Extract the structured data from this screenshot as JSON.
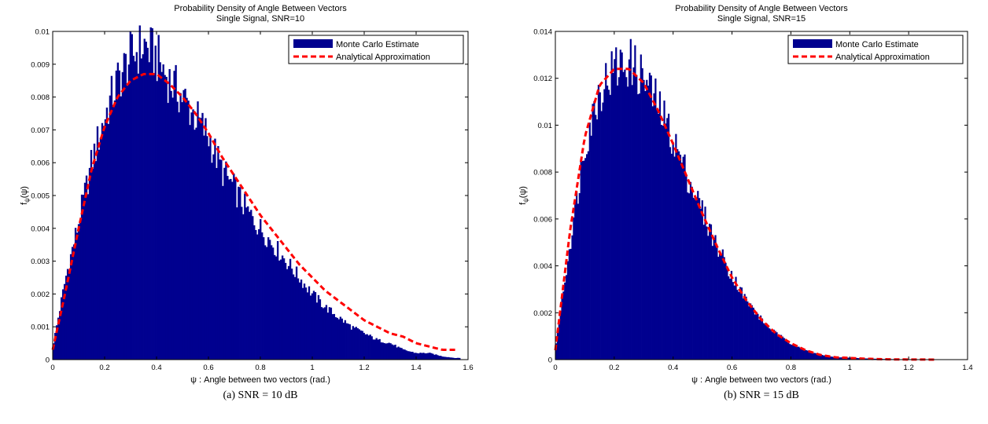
{
  "charts": [
    {
      "title_line1": "Probability Density of Angle Between Vectors",
      "title_line2": "Single Signal, SNR=10",
      "caption": "(a)  SNR = 10 dB",
      "legend": {
        "histogram": "Monte Carlo Estimate",
        "curve": "Analytical Approximation",
        "placement": "top-right"
      }
    },
    {
      "title_line1": "Probability Density of Angle Between Vectors",
      "title_line2": "Single Signal, SNR=15",
      "caption": "(b)  SNR = 15 dB",
      "legend": {
        "histogram": "Monte Carlo Estimate",
        "curve": "Analytical Approximation",
        "placement": "top-right"
      }
    }
  ],
  "colors": {
    "histogram": "#00008f",
    "curve": "#ff0000"
  },
  "chart_data": [
    {
      "type": "bar",
      "title": "Probability Density of Angle Between Vectors\nSingle Signal, SNR=10",
      "xlabel": "ψ : Angle between two vectors (rad.)",
      "ylabel": "f_ψ(ψ)",
      "xlim": [
        0,
        1.6
      ],
      "ylim": [
        0,
        0.01
      ],
      "xticks": [
        0,
        0.2,
        0.4,
        0.6,
        0.8,
        1,
        1.2,
        1.4,
        1.6
      ],
      "xtick_labels": [
        "0",
        "0.2",
        "0.4",
        "0.6",
        "0.8",
        "1",
        "1.2",
        "1.4",
        "1.6"
      ],
      "yticks": [
        0,
        0.001,
        0.002,
        0.003,
        0.004,
        0.005,
        0.006,
        0.007,
        0.008,
        0.009,
        0.01
      ],
      "ytick_labels": [
        "0",
        "0.001",
        "0.002",
        "0.003",
        "0.004",
        "0.005",
        "0.006",
        "0.007",
        "0.008",
        "0.009",
        "0.01"
      ],
      "grid": false,
      "series": [
        {
          "name": "Monte Carlo Estimate",
          "kind": "histogram",
          "x": [
            0.0,
            0.05,
            0.1,
            0.15,
            0.2,
            0.25,
            0.3,
            0.35,
            0.4,
            0.45,
            0.5,
            0.55,
            0.6,
            0.65,
            0.7,
            0.75,
            0.8,
            0.85,
            0.9,
            0.95,
            1.0,
            1.05,
            1.1,
            1.15,
            1.2,
            1.25,
            1.3,
            1.35,
            1.4,
            1.45,
            1.5,
            1.55
          ],
          "y": [
            0.0004,
            0.0025,
            0.0042,
            0.006,
            0.0074,
            0.0085,
            0.0092,
            0.0096,
            0.0092,
            0.0085,
            0.008,
            0.0074,
            0.0068,
            0.0058,
            0.0052,
            0.0045,
            0.004,
            0.0035,
            0.003,
            0.0025,
            0.002,
            0.0016,
            0.0013,
            0.001,
            0.0008,
            0.0006,
            0.0005,
            0.0003,
            0.0002,
            0.0002,
            0.0001,
            5e-05
          ]
        },
        {
          "name": "Analytical Approximation",
          "kind": "line",
          "x": [
            0.0,
            0.05,
            0.1,
            0.15,
            0.2,
            0.25,
            0.3,
            0.35,
            0.4,
            0.45,
            0.5,
            0.55,
            0.6,
            0.65,
            0.7,
            0.75,
            0.8,
            0.85,
            0.9,
            0.95,
            1.0,
            1.05,
            1.1,
            1.15,
            1.2,
            1.25,
            1.3,
            1.35,
            1.4,
            1.45,
            1.5,
            1.55
          ],
          "y": [
            0.0003,
            0.0021,
            0.004,
            0.0058,
            0.0071,
            0.008,
            0.0085,
            0.0087,
            0.0087,
            0.0084,
            0.008,
            0.0075,
            0.0069,
            0.0062,
            0.0056,
            0.005,
            0.0044,
            0.0039,
            0.0034,
            0.0029,
            0.0025,
            0.0021,
            0.0018,
            0.0015,
            0.0012,
            0.001,
            0.0008,
            0.0007,
            0.0005,
            0.0004,
            0.0003,
            0.0003
          ]
        }
      ]
    },
    {
      "type": "bar",
      "title": "Probability Density of Angle Between Vectors\nSingle Signal, SNR=15",
      "xlabel": "ψ : Angle between two vectors (rad.)",
      "ylabel": "f_ψ(ψ)",
      "xlim": [
        0,
        1.4
      ],
      "ylim": [
        0,
        0.014
      ],
      "xticks": [
        0,
        0.2,
        0.4,
        0.6,
        0.8,
        1,
        1.2,
        1.4
      ],
      "xtick_labels": [
        "0",
        "0.2",
        "0.4",
        "0.6",
        "0.8",
        "1",
        "1.2",
        "1.4"
      ],
      "yticks": [
        0,
        0.002,
        0.004,
        0.006,
        0.008,
        0.01,
        0.012,
        0.014
      ],
      "ytick_labels": [
        "0",
        "0.002",
        "0.004",
        "0.006",
        "0.008",
        "0.01",
        "0.012",
        "0.014"
      ],
      "grid": false,
      "series": [
        {
          "name": "Monte Carlo Estimate",
          "kind": "histogram",
          "x": [
            0.0,
            0.05,
            0.1,
            0.15,
            0.2,
            0.25,
            0.3,
            0.35,
            0.4,
            0.45,
            0.5,
            0.55,
            0.6,
            0.65,
            0.7,
            0.75,
            0.8,
            0.85,
            0.9,
            0.95,
            1.0,
            1.05,
            1.1,
            1.15,
            1.2,
            1.25
          ],
          "y": [
            0.0005,
            0.005,
            0.0092,
            0.0115,
            0.0124,
            0.0127,
            0.012,
            0.0108,
            0.0094,
            0.0078,
            0.0063,
            0.0048,
            0.0036,
            0.0025,
            0.0017,
            0.0011,
            0.0007,
            0.0004,
            0.0002,
            0.0001,
            8e-05,
            5e-05,
            3e-05,
            2e-05,
            1e-05,
            1e-05
          ]
        },
        {
          "name": "Analytical Approximation",
          "kind": "line",
          "x": [
            0.0,
            0.05,
            0.1,
            0.15,
            0.2,
            0.25,
            0.3,
            0.35,
            0.4,
            0.45,
            0.5,
            0.55,
            0.6,
            0.65,
            0.7,
            0.75,
            0.8,
            0.85,
            0.9,
            0.95,
            1.0,
            1.05,
            1.1,
            1.15,
            1.2,
            1.25,
            1.3
          ],
          "y": [
            0.0004,
            0.0055,
            0.0095,
            0.0117,
            0.0124,
            0.0124,
            0.0118,
            0.0106,
            0.0092,
            0.0077,
            0.0062,
            0.0048,
            0.0035,
            0.0025,
            0.0017,
            0.0011,
            0.0007,
            0.0004,
            0.0002,
            0.0001,
            7e-05,
            4e-05,
            2e-05,
            1e-05,
            5e-06,
            3e-06,
            1e-06
          ]
        }
      ]
    }
  ]
}
